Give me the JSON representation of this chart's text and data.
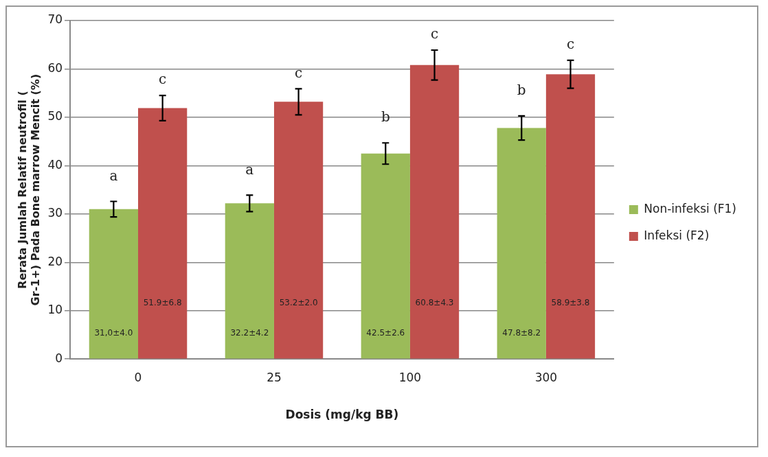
{
  "chart_data": {
    "type": "bar",
    "xlabel": "Dosis (mg/kg BB)",
    "ylabel": "Rerata Jumlah Relatif neutrofil ( Gr-1+) Pada Bone marrow Mencit (%)",
    "categories": [
      "0",
      "25",
      "100",
      "300"
    ],
    "series": [
      {
        "name": "Non-infeksi (F1)",
        "color": "#9bbb59",
        "values": [
          31.0,
          32.2,
          42.5,
          47.8
        ],
        "errors": [
          1.6,
          1.7,
          2.2,
          2.5
        ],
        "value_labels": [
          "31,0±4.0",
          "32.2±4.2",
          "42.5±2.6",
          "47.8±8.2"
        ]
      },
      {
        "name": "Infeksi (F2)",
        "color": "#c0504d",
        "values": [
          51.9,
          53.2,
          60.8,
          58.9
        ],
        "errors": [
          2.6,
          2.7,
          3.1,
          2.9
        ],
        "value_labels": [
          "51.9±6.8",
          "53.2±2.0",
          "60.8±4.3",
          "58.9±3.8"
        ]
      }
    ],
    "annotations": [
      "a",
      "c",
      "a",
      "c",
      "b",
      "c",
      "b",
      "c"
    ],
    "ylim": [
      0,
      70
    ],
    "yticks": [
      0,
      10,
      20,
      30,
      40,
      50,
      60,
      70
    ],
    "grid": "y",
    "legend": "right"
  }
}
